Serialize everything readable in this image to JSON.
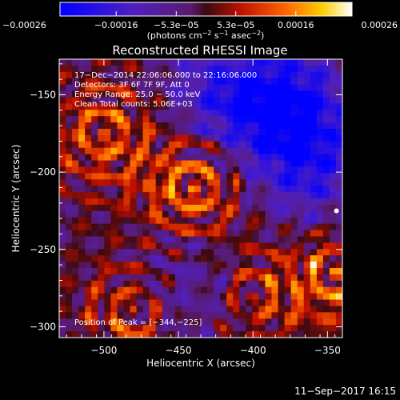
{
  "chart_data": {
    "type": "heatmap",
    "title": "Reconstructed RHESSI Image",
    "xlabel": "Heliocentric X (arcsec)",
    "ylabel": "Heliocentric Y (arcsec)",
    "xlim": [
      -530,
      -340
    ],
    "ylim": [
      -307,
      -127
    ],
    "x_ticks": [
      {
        "value": -500,
        "label": "−500"
      },
      {
        "value": -450,
        "label": "−450"
      },
      {
        "value": -400,
        "label": "−400"
      },
      {
        "value": -350,
        "label": "−350"
      }
    ],
    "y_ticks": [
      {
        "value": -150,
        "label": "−150"
      },
      {
        "value": -200,
        "label": "−200"
      },
      {
        "value": -250,
        "label": "−250"
      },
      {
        "value": -300,
        "label": "−300"
      }
    ],
    "colorbar": {
      "colormap": "blue-purple-red-orange-yellow-white",
      "range": [
        -0.00026,
        0.00026
      ],
      "ticks": [
        {
          "value": -0.00026,
          "label": "−0.00026"
        },
        {
          "value": -0.00016,
          "label": "−0.00016"
        },
        {
          "value": -5.3e-05,
          "label": "−5.3e−05"
        },
        {
          "value": 5.3e-05,
          "label": "5.3e−05"
        },
        {
          "value": 0.00016,
          "label": "0.00016"
        },
        {
          "value": 0.00026,
          "label": "0.00026"
        }
      ],
      "unit_parts": [
        "(photons cm",
        "−2",
        " s",
        "−1",
        " asec",
        "−2",
        ")"
      ]
    },
    "info_lines": [
      "17−Dec−2014 22:06:06.000 to 22:16:06.000",
      "Detectors: 3F 6F 7F 9F, Att 0",
      "Energy Range: 25.0 − 50.0 keV",
      "Clean     Total counts: 5.06E+03"
    ],
    "peak_label": "Position of Peak = [−344,−225]",
    "peak": {
      "x": -344,
      "y": -225
    },
    "bright_regions": [
      {
        "x": -440,
        "y": -210,
        "weight": 1.0
      },
      {
        "x": -500,
        "y": -175,
        "weight": 0.75
      },
      {
        "x": -345,
        "y": -265,
        "weight": 0.85
      },
      {
        "x": -480,
        "y": -290,
        "weight": 0.8
      },
      {
        "x": -400,
        "y": -280,
        "weight": 0.6
      }
    ],
    "dim_regions": [
      {
        "x": -375,
        "y": -160,
        "weight": 1.0
      },
      {
        "x": -420,
        "y": -150,
        "weight": 0.7
      },
      {
        "x": -360,
        "y": -205,
        "weight": 0.6
      },
      {
        "x": -445,
        "y": -275,
        "weight": 0.55
      }
    ]
  },
  "footer_date": "11−Sep−2017 16:15"
}
